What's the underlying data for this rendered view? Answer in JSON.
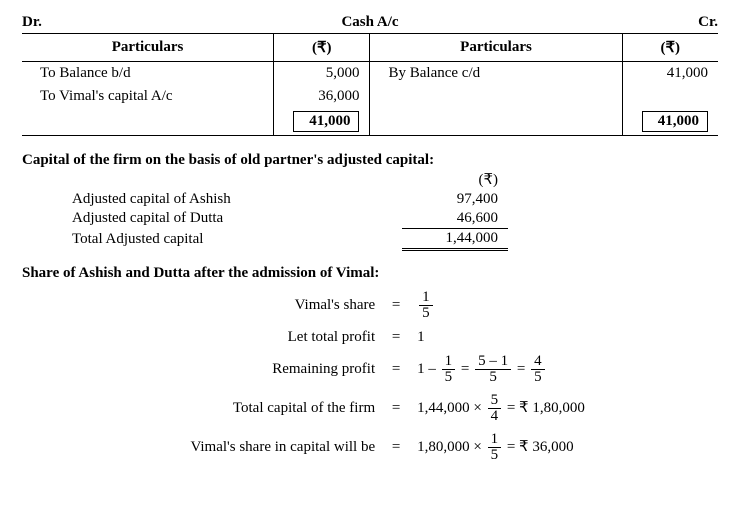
{
  "header": {
    "dr": "Dr.",
    "title": "Cash A/c",
    "cr": "Cr."
  },
  "ledger": {
    "col_particulars": "Particulars",
    "col_rupee": "(₹)",
    "dr_rows": [
      {
        "label": "To Balance b/d",
        "amount": "5,000"
      },
      {
        "label": "To Vimal's capital A/c",
        "amount": "36,000"
      }
    ],
    "cr_rows": [
      {
        "label": "By Balance c/d",
        "amount": "41,000"
      }
    ],
    "total_dr": "41,000",
    "total_cr": "41,000"
  },
  "adjusted": {
    "title": "Capital of the firm on the basis of old partner's adjusted capital:",
    "col_rupee": "(₹)",
    "rows": [
      {
        "label": "Adjusted capital of Ashish",
        "value": "97,400"
      },
      {
        "label": "Adjusted capital of Dutta",
        "value": "46,600"
      }
    ],
    "total_label": "Total Adjusted capital",
    "total_value": "1,44,000"
  },
  "share": {
    "title": "Share of Ashish and Dutta after the admission of Vimal:",
    "line1_label": "Vimal's share",
    "line1_num": "1",
    "line1_den": "5",
    "line2_label": "Let total profit",
    "line2_val": "1",
    "line3_label": "Remaining profit",
    "line3_a": "1",
    "line3_b_num": "1",
    "line3_b_den": "5",
    "line3_c_num": "5 – 1",
    "line3_c_den": "5",
    "line3_d_num": "4",
    "line3_d_den": "5",
    "line4_label": "Total capital of the firm",
    "line4_base": "1,44,000",
    "line4_mul_num": "5",
    "line4_mul_den": "4",
    "line4_result": "= ₹ 1,80,000",
    "line5_label": "Vimal's share in capital will be",
    "line5_base": "1,80,000",
    "line5_mul_num": "1",
    "line5_mul_den": "5",
    "line5_result": "= ₹ 36,000"
  }
}
